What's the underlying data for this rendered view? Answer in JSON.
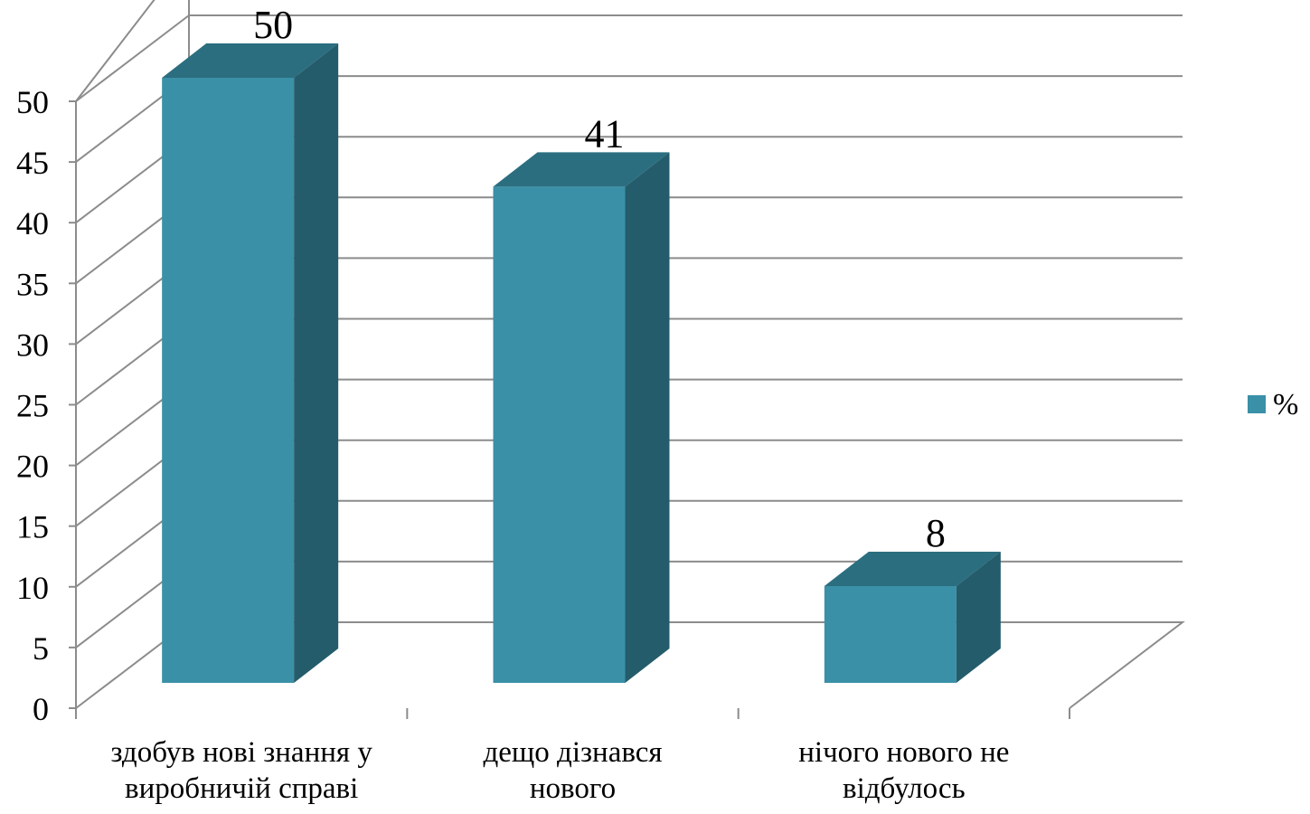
{
  "chart_data": {
    "type": "bar",
    "three_d": true,
    "categories": [
      [
        "здобув нові знання у",
        "виробничій справі"
      ],
      [
        "дещо дізнався",
        "нового"
      ],
      [
        "нічого нового не",
        "відбулось"
      ]
    ],
    "series": [
      {
        "name": "%",
        "values": [
          50,
          41,
          8
        ]
      }
    ],
    "data_labels": [
      "50",
      "41",
      "8"
    ],
    "y_ticks": [
      "0",
      "5",
      "10",
      "15",
      "20",
      "25",
      "30",
      "35",
      "40",
      "45",
      "50"
    ],
    "ylim": [
      0,
      50
    ],
    "y_tick_step": 5,
    "grid": true,
    "legend": {
      "position": "right",
      "entries": [
        "%"
      ]
    },
    "colors": {
      "bar_front": "#3a90a7",
      "bar_top": "#2b6e80",
      "bar_side": "#245c6b",
      "grid": "#8c8c8c",
      "axis": "#8c8c8c"
    }
  }
}
